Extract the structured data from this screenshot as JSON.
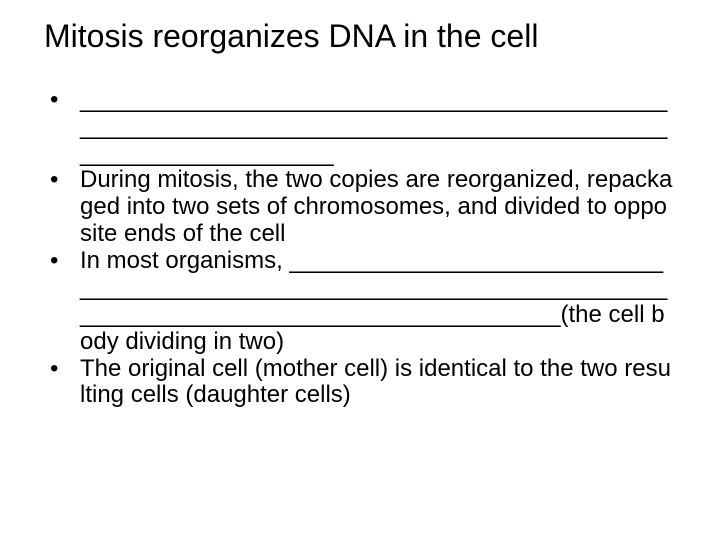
{
  "slide": {
    "title": "Mitosis reorganizes DNA in the cell",
    "title_fontsize": 32,
    "body_fontsize": 24,
    "background_color": "#ffffff",
    "text_color": "#000000",
    "bullets": [
      {
        "text": "___________________________________________________________________________________________________________"
      },
      {
        "text": "During mitosis, the two copies are reorganized, repackaged into two sets of chromosomes, and divided to opposite ends of the cell"
      },
      {
        "text": "In most organisms, ____________________________________________________________________________________________________________(the cell body dividing in two)"
      },
      {
        "text": "The original cell (mother cell) is identical to the two resulting cells (daughter cells)"
      }
    ]
  }
}
